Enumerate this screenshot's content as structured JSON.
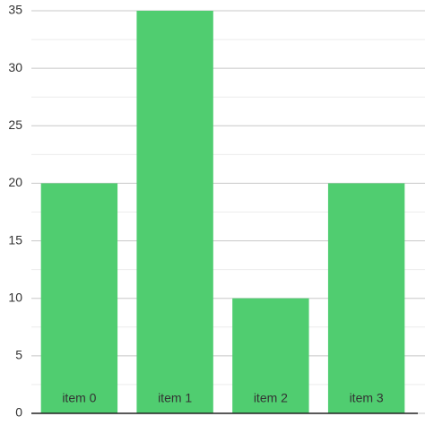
{
  "chart_data": {
    "type": "bar",
    "categories": [
      "item 0",
      "item 1",
      "item 2",
      "item 3"
    ],
    "values": [
      20,
      35,
      10,
      20
    ],
    "color": "#50cd70",
    "ylim": [
      0,
      35
    ],
    "yticks": [
      0,
      5,
      10,
      15,
      20,
      25,
      30,
      35
    ],
    "grid": true,
    "minor_grid": true
  }
}
